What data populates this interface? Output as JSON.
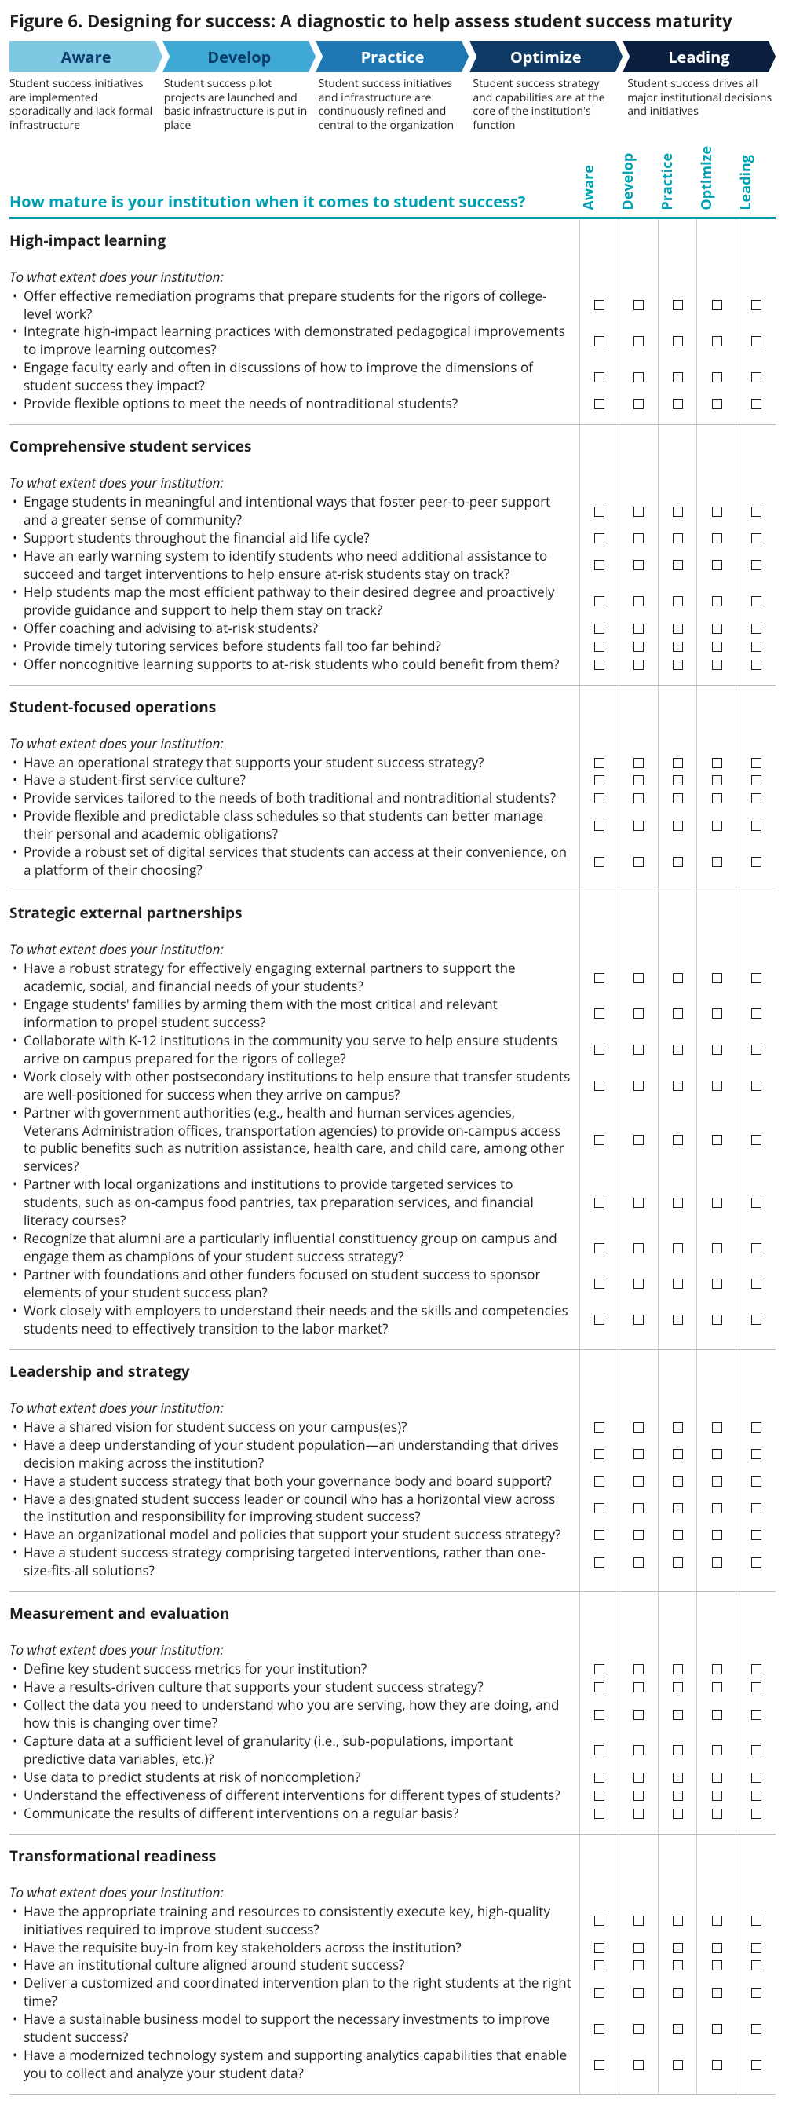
{
  "figureTitle": "Figure 6. Designing for success: A diagnostic to help assess student success maturity",
  "stages": [
    {
      "label": "Aware",
      "bg": "#7ec8e3",
      "fg": "#0b3c6b",
      "desc": "Student success initiatives are implemented sporadically and lack formal infrastructure"
    },
    {
      "label": "Develop",
      "bg": "#3fa9d6",
      "fg": "#0b3c6b",
      "desc": "Student success pilot projects are launched and basic infrastructure is put in place"
    },
    {
      "label": "Practice",
      "bg": "#1f77b4",
      "fg": "#ffffff",
      "desc": "Student success initiatives and infrastructure are continuously refined and central to the organization"
    },
    {
      "label": "Optimize",
      "bg": "#0d3b66",
      "fg": "#ffffff",
      "desc": "Student success strategy and capabilities are at the core of the institution's function"
    },
    {
      "label": "Leading",
      "bg": "#0a1f3d",
      "fg": "#ffffff",
      "desc": "Student success drives all major institutional decisions and initiatives"
    }
  ],
  "questionHeader": "How mature is your institution when it comes to student success?",
  "columnLabels": [
    "Aware",
    "Develop",
    "Practice",
    "Optimize",
    "Leading"
  ],
  "accentColor": "#008b9e",
  "sections": [
    {
      "title": "High-impact learning",
      "prompt": "To what extent does your institution:",
      "items": [
        "Offer effective remediation programs that prepare students for the rigors of college-level work?",
        "Integrate high-impact learning practices with demonstrated pedagogical improvements to improve learning outcomes?",
        "Engage faculty early and often in discussions of how to improve the dimensions of student success they impact?",
        "Provide flexible options to meet the needs of nontraditional students?"
      ]
    },
    {
      "title": "Comprehensive student services",
      "prompt": "To what extent does your institution:",
      "items": [
        "Engage students in meaningful and intentional ways that foster peer-to-peer support and a greater sense of community?",
        "Support students throughout the financial aid life cycle?",
        "Have an early warning system to identify students who need additional assistance to succeed and target interventions to help ensure at-risk students stay on track?",
        "Help students map the most efficient pathway to their desired degree and proactively provide guidance and support to help them stay on track?",
        "Offer coaching and advising to at-risk students?",
        "Provide timely tutoring services before students fall too far behind?",
        "Offer noncognitive learning supports to at-risk students who could benefit from them?"
      ]
    },
    {
      "title": "Student-focused operations",
      "prompt": "To what extent does your institution:",
      "items": [
        "Have an operational strategy that supports your student success strategy?",
        "Have a student-first service culture?",
        "Provide services tailored to the needs of both traditional and nontraditional students?",
        "Provide flexible and predictable class schedules so that students can better manage their personal and academic obligations?",
        "Provide a robust set of digital services that students can access at their convenience, on a platform of their choosing?"
      ]
    },
    {
      "title": "Strategic external partnerships",
      "prompt": "To what extent does your institution:",
      "items": [
        "Have a robust strategy for effectively engaging external partners to support the academic, social, and financial needs of your students?",
        "Engage students' families by arming them with the most critical and relevant information to propel student success?",
        "Collaborate with K-12 institutions in the community you serve to help ensure students arrive on campus prepared for the rigors of college?",
        "Work closely with other postsecondary institutions to help ensure that transfer students are well-positioned for success when they arrive on campus?",
        "Partner with government authorities (e.g., health and human services agencies, Veterans Administration offices, transportation agencies) to provide on-campus access to public benefits such as nutrition assistance, health care, and child care, among other services?",
        "Partner with local organizations and institutions to provide targeted services to students, such as on-campus food pantries, tax preparation services, and financial literacy courses?",
        "Recognize that alumni are a particularly influential constituency group on campus and engage them as champions of your student success strategy?",
        "Partner with foundations and other funders focused on student success to sponsor elements of your student success plan?",
        "Work closely with employers to understand their needs and the skills and competencies students need to effectively transition to the labor market?"
      ]
    },
    {
      "title": "Leadership and strategy",
      "prompt": "To what extent does your institution:",
      "items": [
        "Have a shared vision for student success on your campus(es)?",
        "Have a deep understanding of your student population—an understanding that drives decision making across the institution?",
        "Have a student success strategy that both your governance body and board support?",
        "Have a designated student success leader or council who has a horizontal view across the institution and responsibility for improving student success?",
        "Have an organizational model and policies that support your student success strategy?",
        "Have a student success strategy comprising targeted interventions, rather than one-size-fits-all solutions?"
      ]
    },
    {
      "title": "Measurement and evaluation",
      "prompt": "To what extent does your institution:",
      "items": [
        "Define key student success metrics for your institution?",
        "Have a results-driven culture that supports your student success strategy?",
        "Collect the data you need to understand who you are serving, how they are doing, and how this is changing over time?",
        "Capture data at a sufficient level of granularity (i.e., sub-populations, important predictive data variables, etc.)?",
        "Use data to predict students at risk of noncompletion?",
        "Understand the effectiveness of different interventions for different types of students?",
        "Communicate the results of different interventions on a regular basis?"
      ]
    },
    {
      "title": "Transformational readiness",
      "prompt": "To what extent does your institution:",
      "items": [
        "Have the appropriate training and resources to consistently execute key, high-quality initiatives required to improve student success?",
        "Have the requisite buy-in from key stakeholders across the institution?",
        "Have an institutional culture aligned around student success?",
        "Deliver a customized and coordinated intervention plan to the right students at the right time?",
        "Have a sustainable business model to support the necessary investments to improve student success?",
        "Have a modernized technology system and supporting analytics capabilities that enable you to collect and analyze your student data?"
      ]
    }
  ]
}
